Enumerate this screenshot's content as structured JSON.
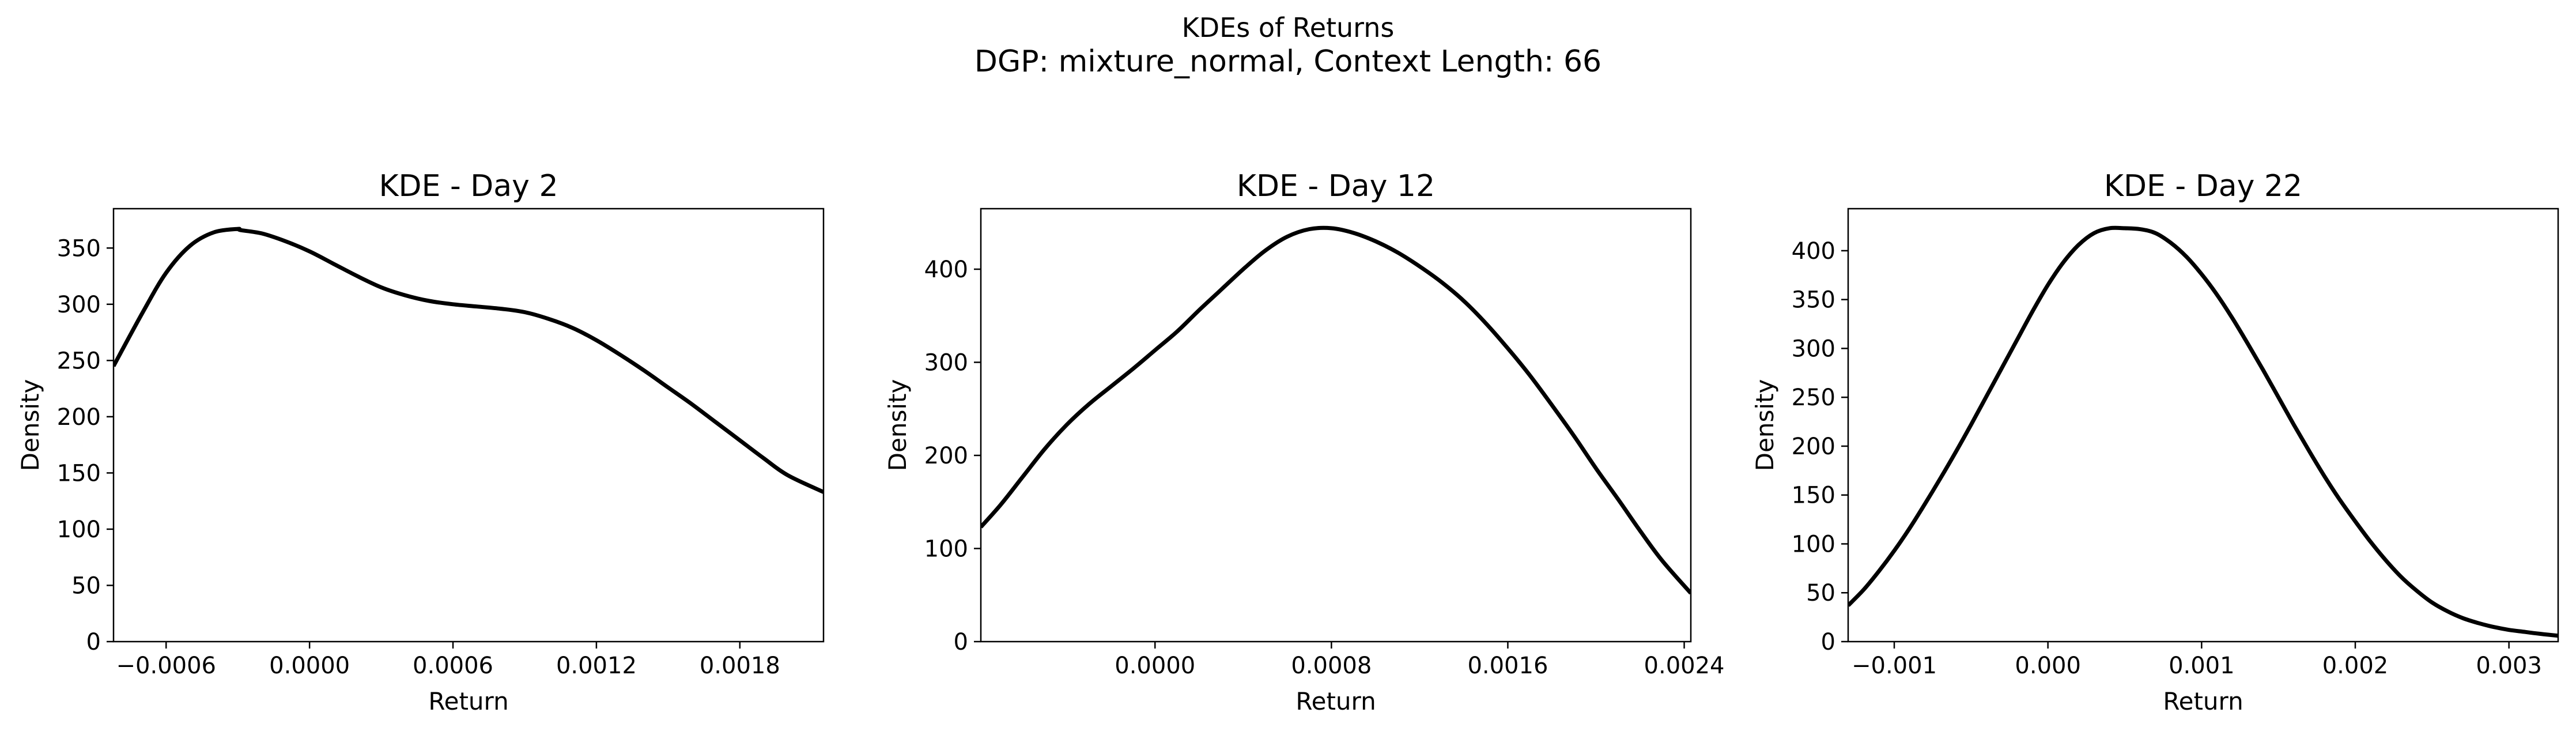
{
  "figure": {
    "title": "KDEs of Returns",
    "subtitle": "DGP: mixture_normal, Context Length: 66"
  },
  "chart_data": [
    {
      "type": "line",
      "title": "KDE - Day 2",
      "xlabel": "Return",
      "ylabel": "Density",
      "xlim": [
        -0.00082,
        0.00215
      ],
      "ylim": [
        0,
        385
      ],
      "xticks": [
        -0.0006,
        0.0,
        0.0006,
        0.0012,
        0.0018
      ],
      "xtick_labels": [
        "−0.0006",
        "0.0000",
        "0.0006",
        "0.0012",
        "0.0018"
      ],
      "yticks": [
        0,
        50,
        100,
        150,
        200,
        250,
        300,
        350
      ],
      "ytick_labels": [
        "0",
        "50",
        "100",
        "150",
        "200",
        "250",
        "300",
        "350"
      ],
      "grid": false,
      "series": [
        {
          "color": "#000000",
          "x": [
            -0.00082,
            -0.0007,
            -0.0006,
            -0.0005,
            -0.0004,
            -0.0003,
            -0.00029,
            -0.0002,
            -0.0001,
            0.0,
            0.0001,
            0.0002,
            0.0003,
            0.0004,
            0.0005,
            0.0006,
            0.0007,
            0.0008,
            0.0009,
            0.001,
            0.0011,
            0.0012,
            0.0013,
            0.0014,
            0.0015,
            0.0016,
            0.0017,
            0.0018,
            0.0019,
            0.002,
            0.00215
          ],
          "y": [
            245,
            292,
            328,
            352,
            364,
            367,
            366,
            363,
            356,
            347,
            336,
            325,
            315,
            308,
            303,
            300,
            298,
            296,
            293,
            287,
            279,
            268,
            255,
            241,
            226,
            211,
            195,
            179,
            163,
            148,
            133
          ]
        }
      ]
    },
    {
      "type": "line",
      "title": "KDE - Day 12",
      "xlabel": "Return",
      "ylabel": "Density",
      "xlim": [
        -0.00079,
        0.00243
      ],
      "ylim": [
        0,
        465
      ],
      "xticks": [
        0.0,
        0.0008,
        0.0016,
        0.0024
      ],
      "xtick_labels": [
        "0.0000",
        "0.0008",
        "0.0016",
        "0.0024"
      ],
      "yticks": [
        0,
        100,
        200,
        300,
        400
      ],
      "ytick_labels": [
        "0",
        "100",
        "200",
        "300",
        "400"
      ],
      "grid": false,
      "series": [
        {
          "color": "#000000",
          "x": [
            -0.00079,
            -0.0007,
            -0.0006,
            -0.0005,
            -0.0004,
            -0.0003,
            -0.0002,
            -0.0001,
            0.0,
            0.0001,
            0.0002,
            0.0003,
            0.0004,
            0.0005,
            0.0006,
            0.0007,
            0.0008,
            0.0009,
            0.001,
            0.0011,
            0.0012,
            0.0013,
            0.0014,
            0.0015,
            0.0016,
            0.0017,
            0.0018,
            0.0019,
            0.002,
            0.0021,
            0.0022,
            0.0023,
            0.00243
          ],
          "y": [
            123,
            147,
            177,
            207,
            233,
            255,
            274,
            293,
            313,
            333,
            356,
            378,
            400,
            420,
            435,
            443,
            444,
            439,
            430,
            418,
            403,
            386,
            366,
            342,
            315,
            286,
            254,
            221,
            186,
            153,
            119,
            87,
            52
          ]
        }
      ]
    },
    {
      "type": "line",
      "title": "KDE - Day 22",
      "xlabel": "Return",
      "ylabel": "Density",
      "xlim": [
        -0.0013,
        0.00332
      ],
      "ylim": [
        0,
        443
      ],
      "xticks": [
        -0.001,
        0.0,
        0.001,
        0.002,
        0.003
      ],
      "xtick_labels": [
        "−0.001",
        "0.000",
        "0.001",
        "0.002",
        "0.003"
      ],
      "yticks": [
        0,
        50,
        100,
        150,
        200,
        250,
        300,
        350,
        400
      ],
      "ytick_labels": [
        "0",
        "50",
        "100",
        "150",
        "200",
        "250",
        "300",
        "350",
        "400"
      ],
      "grid": false,
      "series": [
        {
          "color": "#000000",
          "x": [
            -0.0013,
            -0.0012,
            -0.0011,
            -0.001,
            -0.0009,
            -0.0008,
            -0.0007,
            -0.0006,
            -0.0005,
            -0.0004,
            -0.0003,
            -0.0002,
            -0.0001,
            0.0,
            0.0001,
            0.0002,
            0.0003,
            0.0004,
            0.0005,
            0.0006,
            0.0007,
            0.0008,
            0.0009,
            0.001,
            0.0011,
            0.0012,
            0.0013,
            0.0014,
            0.0015,
            0.0016,
            0.0017,
            0.0018,
            0.0019,
            0.002,
            0.0021,
            0.0022,
            0.0023,
            0.0024,
            0.0025,
            0.0026,
            0.0027,
            0.0028,
            0.0029,
            0.003,
            0.0031,
            0.0032,
            0.00332
          ],
          "y": [
            37,
            53,
            72,
            93,
            116,
            141,
            167,
            194,
            222,
            251,
            280,
            309,
            338,
            365,
            388,
            406,
            418,
            423,
            423,
            422,
            418,
            408,
            394,
            376,
            355,
            331,
            305,
            278,
            250,
            222,
            195,
            169,
            145,
            123,
            102,
            83,
            66,
            52,
            40,
            31,
            24,
            19,
            15,
            12,
            10,
            8,
            6
          ]
        }
      ]
    }
  ]
}
